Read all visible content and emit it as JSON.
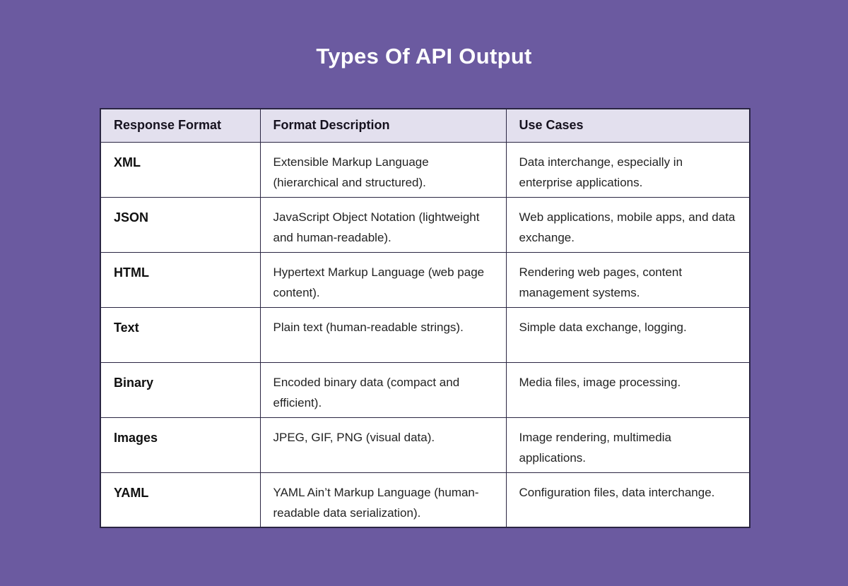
{
  "page": {
    "title": "Types Of API Output",
    "background_color": "#6b5aa0",
    "title_color": "#ffffff",
    "table_border_color": "#2a2542",
    "header_bg_color": "#e3e0ee",
    "cell_bg_color": "#ffffff"
  },
  "chart_data": {
    "type": "table",
    "title": "Types Of API Output",
    "columns": [
      "Response Format",
      "Format Description",
      "Use Cases"
    ],
    "rows": [
      [
        "XML",
        "Extensible Markup Language (hierarchical and structured).",
        "Data interchange, especially in enterprise applications."
      ],
      [
        "JSON",
        "JavaScript Object Notation (lightweight and human-readable).",
        "Web applications, mobile apps, and data exchange."
      ],
      [
        "HTML",
        "Hypertext Markup Language (web page content).",
        "Rendering web pages, content management systems."
      ],
      [
        "Text",
        "Plain text (human-readable strings).",
        "Simple data exchange, logging."
      ],
      [
        "Binary",
        "Encoded binary data (compact and efficient).",
        "Media files, image processing."
      ],
      [
        "Images",
        "JPEG, GIF, PNG (visual data).",
        "Image rendering, multimedia applications."
      ],
      [
        "YAML",
        "YAML Ain’t Markup Language (human-readable data serialization).",
        "Configuration files, data interchange."
      ]
    ]
  }
}
